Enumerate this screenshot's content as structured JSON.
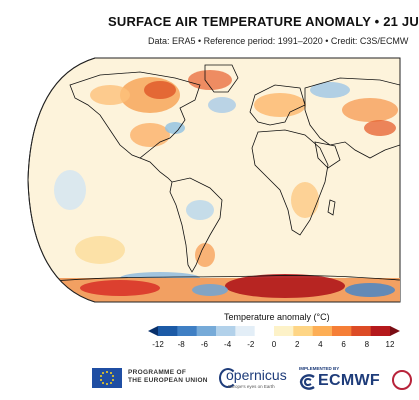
{
  "title": "SURFACE AIR TEMPERATURE ANOMALY • 21 JU",
  "subtitle": "Data: ERA5 • Reference period: 1991–2020 • Credit: C3S/ECMW",
  "legend": {
    "title": "Temperature anomaly (°C)",
    "ticks": [
      "-12",
      "-8",
      "-6",
      "-4",
      "-2",
      "0",
      "2",
      "4",
      "6",
      "8",
      "12"
    ],
    "colors": [
      "#08306b",
      "#1c5aa6",
      "#3f7fc4",
      "#76aad8",
      "#b2d1ea",
      "#e3eef7",
      "#ffffff",
      "#fdf2c8",
      "#fed585",
      "#fdae55",
      "#f57e36",
      "#dc4b26",
      "#b5191c",
      "#7a0d14"
    ]
  },
  "logos": {
    "eu_line1": "PROGRAMME OF",
    "eu_line2": "THE EUROPEAN UNION",
    "copernicus": "opernicus",
    "copernicus_sub": "Europe's eyes on Earth",
    "implemented_by": "IMPLEMENTED BY",
    "ecmwf": "ECMWF"
  },
  "map": {
    "projection": "robinson",
    "land_color": "#fbecc8",
    "ocean_color": "#fdf4dc"
  }
}
